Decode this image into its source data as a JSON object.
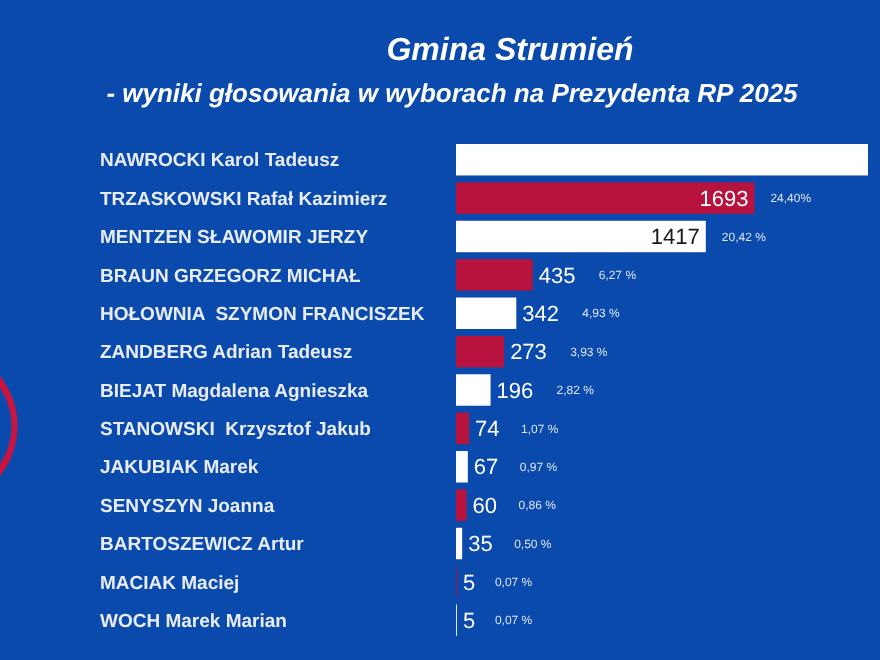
{
  "chart_data": {
    "type": "bar",
    "orientation": "horizontal",
    "title": "Gmina Strumień",
    "subtitle": "- wyniki głosowania w wyborach na Prezydenta RP 2025",
    "categories": [
      "NAWROCKI Karol Tadeusz",
      "TRZASKOWSKI Rafał Kazimierz",
      "MENTZEN SŁAWOMIR JERZY",
      "BRAUN GRZEGORZ MICHAŁ",
      "HOŁOWNIA  SZYMON FRANCISZEK",
      "ZANDBERG Adrian Tadeusz",
      "BIEJAT Magdalena Agnieszka",
      "STANOWSKI  Krzysztof Jakub",
      "JAKUBIAK Marek",
      "SENYSZYN Joanna",
      "BARTOSZEWICZ Artur",
      "MACIAK Maciej",
      "WOCH Marek Marian"
    ],
    "values": [
      2337,
      1693,
      1417,
      435,
      342,
      273,
      196,
      74,
      67,
      60,
      35,
      5,
      5
    ],
    "colors": [
      "#ffffff",
      "#b8123e",
      "#ffffff",
      "#b8123e",
      "#ffffff",
      "#b8123e",
      "#ffffff",
      "#b8123e",
      "#ffffff",
      "#b8123e",
      "#ffffff",
      "#b8123e",
      "#ffffff"
    ],
    "value_labels": [
      null,
      "1693",
      "1417",
      "435",
      "342",
      "273",
      "196",
      "74",
      "67",
      "60",
      "35",
      "5",
      "5"
    ],
    "annotations": [
      "24,40%",
      "20,42 %",
      "6,27 %",
      "4,93 %",
      "3,93 %",
      "2,82 %",
      "1,07 %",
      "0,97 %",
      "0,86 %",
      "0,50 %",
      "0,07 %",
      "0,07 %"
    ]
  }
}
